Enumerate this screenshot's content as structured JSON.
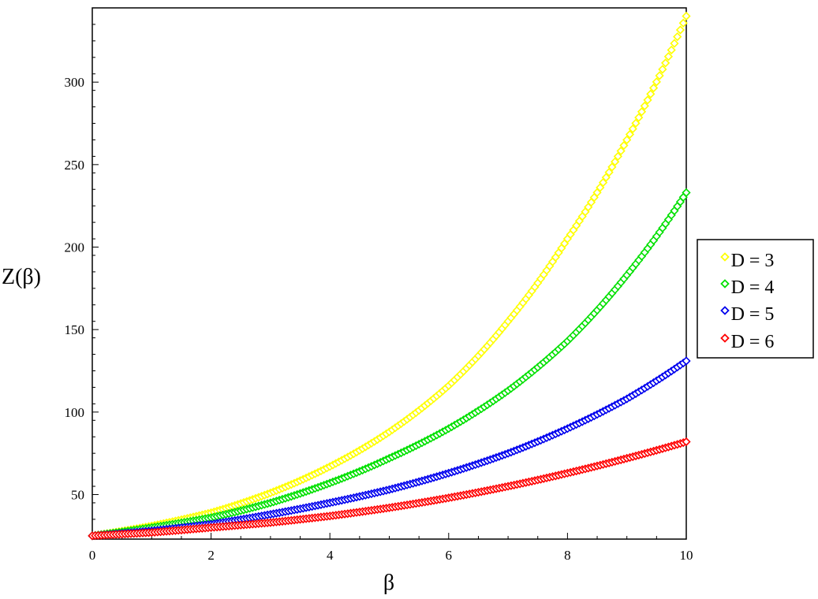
{
  "chart_data": {
    "type": "scatter",
    "title": "",
    "xlabel": "β",
    "ylabel": "Z(β)",
    "xlim": [
      0,
      10
    ],
    "ylim": [
      23,
      345
    ],
    "x_ticks": [
      0,
      2,
      4,
      6,
      8,
      10
    ],
    "x_tick_labels": [
      "0",
      "2",
      "4",
      "6",
      "8",
      "10"
    ],
    "y_ticks": [
      50,
      100,
      150,
      200,
      250,
      300
    ],
    "y_tick_labels": [
      "50",
      "100",
      "150",
      "200",
      "250",
      "300"
    ],
    "marker": "diamond",
    "grid": false,
    "legend_position": "right",
    "x": [
      0,
      1,
      2,
      3,
      4,
      5,
      6,
      7,
      8,
      9,
      10
    ],
    "series": [
      {
        "name": "D = 3",
        "color": "#ffff00",
        "values": [
          25,
          31,
          39,
          51,
          67,
          88,
          116,
          155,
          205,
          265,
          340
        ]
      },
      {
        "name": "D = 4",
        "color": "#00e000",
        "values": [
          25,
          30,
          36,
          45,
          57,
          72,
          90,
          113,
          143,
          183,
          233
        ]
      },
      {
        "name": "D = 5",
        "color": "#0000ee",
        "values": [
          25,
          28,
          32,
          38,
          45,
          53,
          63,
          75,
          90,
          108,
          131
        ]
      },
      {
        "name": "D = 6",
        "color": "#ff0000",
        "values": [
          25,
          27,
          30,
          33,
          37,
          42,
          48,
          55,
          63,
          72,
          82
        ]
      }
    ]
  }
}
